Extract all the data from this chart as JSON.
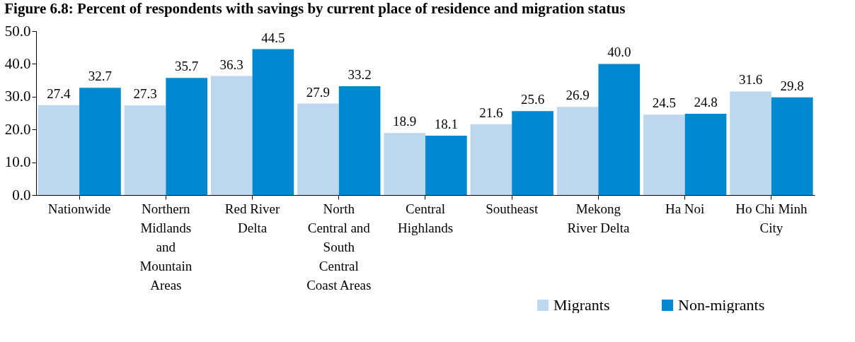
{
  "chart_data": {
    "type": "bar",
    "title": "Figure 6.8: Percent of respondents with savings by current place of residence and migration status",
    "categories": [
      "Nationwide",
      "Northern Midlands and Mountain Areas",
      "Red River Delta",
      "North Central and South Central Coast Areas",
      "Central Highlands",
      "Southeast",
      "Mekong River Delta",
      "Ha Noi",
      "Ho Chi Minh City"
    ],
    "series": [
      {
        "name": "Migrants",
        "color": "#bdd7ee",
        "values": [
          27.4,
          27.3,
          36.3,
          27.9,
          18.9,
          21.6,
          26.9,
          24.5,
          31.6
        ],
        "value_labels": [
          "27.4",
          "27.3",
          "36.3",
          "27.9",
          "18.9",
          "21.6",
          "26.9",
          "24.5",
          "31.6"
        ]
      },
      {
        "name": "Non-migrants",
        "color": "#0088d1",
        "values": [
          32.7,
          35.7,
          44.5,
          33.2,
          18.1,
          25.6,
          40.0,
          24.8,
          29.8
        ],
        "value_labels": [
          "32.7",
          "35.7",
          "44.5",
          "33.2",
          "18.1",
          "25.6",
          "40.0",
          "24.8",
          "29.8"
        ]
      }
    ],
    "ylim": [
      0,
      50
    ],
    "yticks": [
      {
        "value": 0,
        "label": "0.0"
      },
      {
        "value": 10,
        "label": "10.0"
      },
      {
        "value": 20,
        "label": "20.0"
      },
      {
        "value": 30,
        "label": "30.0"
      },
      {
        "value": 40,
        "label": "40.0"
      },
      {
        "value": 50,
        "label": "50.0"
      }
    ],
    "grid": false,
    "legend": "bottom right"
  }
}
